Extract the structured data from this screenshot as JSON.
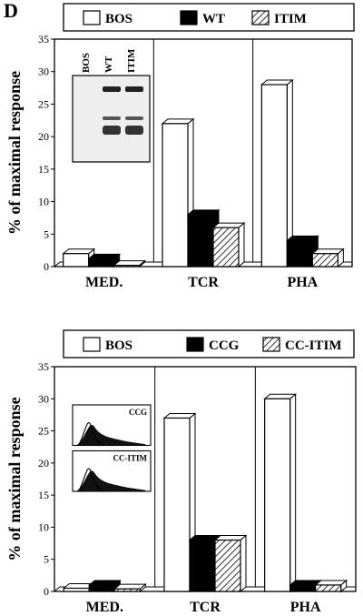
{
  "figure": {
    "panel_label": "D"
  },
  "chart_data": [
    {
      "type": "bar",
      "categories": [
        "MED.",
        "TCR",
        "PHA"
      ],
      "series": [
        {
          "name": "BOS",
          "values": [
            2,
            22,
            28
          ],
          "fill": "white"
        },
        {
          "name": "WT",
          "values": [
            1.2,
            8,
            4
          ],
          "fill": "black"
        },
        {
          "name": "ITIM",
          "values": [
            0.2,
            6,
            2
          ],
          "fill": "hatch"
        }
      ],
      "ylabel": "% of maximal response",
      "ylim": [
        0,
        35
      ],
      "yticks": [
        0,
        5,
        10,
        15,
        20,
        25,
        30,
        35
      ],
      "legend": "top",
      "inset": {
        "type": "western-blot",
        "lane_labels": [
          "BOS",
          "WT",
          "ITIM"
        ]
      }
    },
    {
      "type": "bar",
      "categories": [
        "MED.",
        "TCR",
        "PHA"
      ],
      "series": [
        {
          "name": "BOS",
          "values": [
            0.5,
            27,
            30
          ],
          "fill": "white"
        },
        {
          "name": "CCG",
          "values": [
            1,
            8,
            1
          ],
          "fill": "black"
        },
        {
          "name": "CC-ITIM",
          "values": [
            0.4,
            8,
            1
          ],
          "fill": "hatch"
        }
      ],
      "ylabel": "% of maximal response",
      "ylim": [
        0,
        35
      ],
      "yticks": [
        0,
        5,
        10,
        15,
        20,
        25,
        30,
        35
      ],
      "legend": "top",
      "inset": {
        "type": "histograms",
        "labels": [
          "CCG",
          "CC-ITIM"
        ]
      }
    }
  ]
}
